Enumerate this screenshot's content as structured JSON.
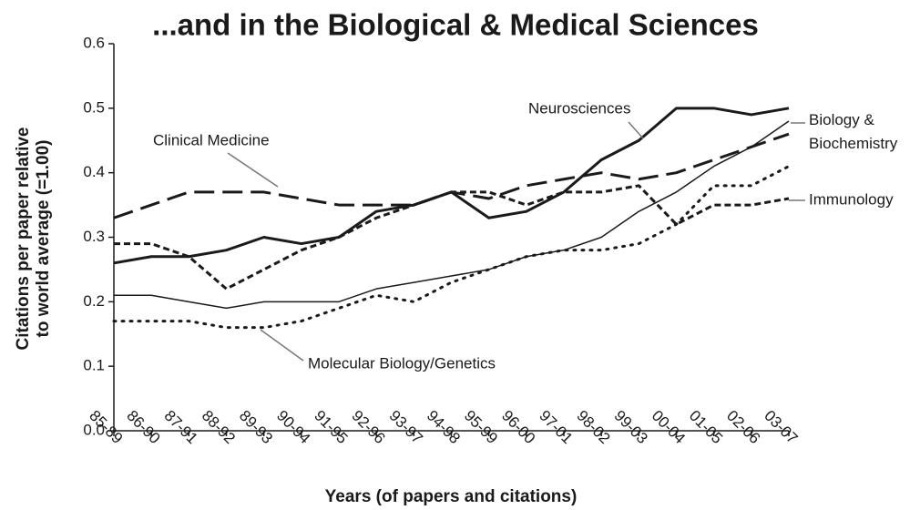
{
  "chart_data": {
    "type": "line",
    "title": "...and in the Biological & Medical Sciences",
    "y_label": [
      "Citations per paper relative",
      "to world average (=1.00)"
    ],
    "x_label": "Years (of papers and citations)",
    "categories": [
      "85-89",
      "86-90",
      "87-91",
      "88-92",
      "89-93",
      "90-94",
      "91-95",
      "92-96",
      "93-97",
      "94-98",
      "95-99",
      "96-00",
      "97-01",
      "98-02",
      "99-03",
      "00-04",
      "01-05",
      "02-06",
      "03-07"
    ],
    "ylim": [
      0,
      0.6
    ],
    "yticks": [
      {
        "value": 0,
        "label": "0.0"
      },
      0.1,
      0.2,
      0.3,
      0.4,
      0.5,
      0.6
    ],
    "series": [
      {
        "name": "Neurosciences",
        "color": "#1a1a1a",
        "dash": "solid",
        "width": 3,
        "values": [
          0.26,
          0.27,
          0.27,
          0.28,
          0.3,
          0.29,
          0.3,
          0.34,
          0.35,
          0.37,
          0.33,
          0.34,
          0.37,
          0.42,
          0.45,
          0.5,
          0.5,
          0.49,
          0.5
        ]
      },
      {
        "name": "Biology & Biochemistry",
        "color": "#1a1a1a",
        "dash": "solid",
        "width": 1.5,
        "values": [
          0.21,
          0.21,
          0.2,
          0.19,
          0.2,
          0.2,
          0.2,
          0.22,
          0.23,
          0.24,
          0.25,
          0.27,
          0.28,
          0.3,
          0.34,
          0.37,
          0.41,
          0.44,
          0.48
        ]
      },
      {
        "name": "Clinical Medicine",
        "color": "#1a1a1a",
        "dash": "long",
        "width": 3,
        "values": [
          0.33,
          0.35,
          0.37,
          0.37,
          0.37,
          0.36,
          0.35,
          0.35,
          0.35,
          0.37,
          0.36,
          0.38,
          0.39,
          0.4,
          0.39,
          0.4,
          0.42,
          0.44,
          0.46
        ]
      },
      {
        "name": "Immunology",
        "color": "#1a1a1a",
        "dash": "short",
        "width": 3,
        "values": [
          0.29,
          0.29,
          0.27,
          0.22,
          0.25,
          0.28,
          0.3,
          0.33,
          0.35,
          0.37,
          0.37,
          0.35,
          0.37,
          0.37,
          0.38,
          0.32,
          0.35,
          0.35,
          0.36
        ]
      },
      {
        "name": "Molecular Biology/Genetics",
        "color": "#1a1a1a",
        "dash": "dotted",
        "width": 3,
        "values": [
          0.17,
          0.17,
          0.17,
          0.16,
          0.16,
          0.17,
          0.19,
          0.21,
          0.2,
          0.23,
          0.25,
          0.27,
          0.28,
          0.28,
          0.29,
          0.32,
          0.38,
          0.38,
          0.41
        ]
      }
    ]
  }
}
